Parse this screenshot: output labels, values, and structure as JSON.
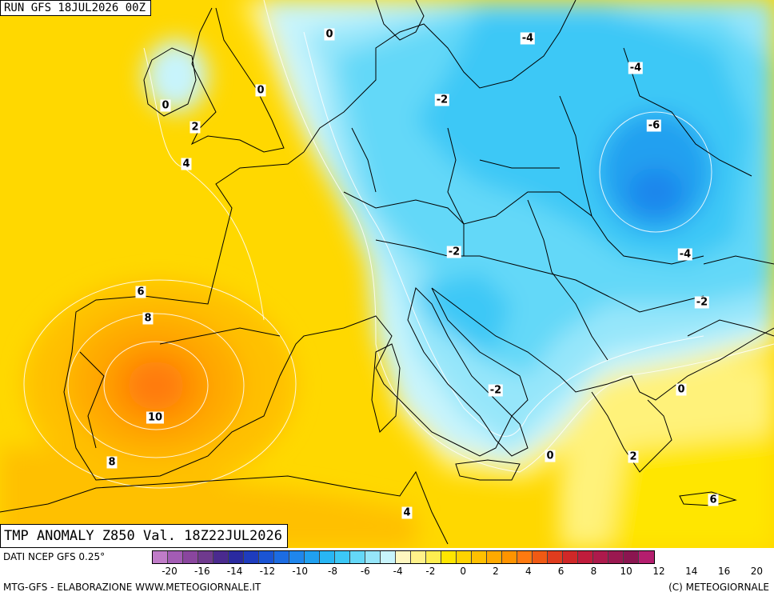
{
  "run_label": "RUN GFS 18JUL2026 00Z",
  "title": "TMP ANOMALY Z850 Val. 18Z22JUL2026",
  "source": "DATI NCEP GFS 0.25°",
  "footer_left": "MTG-GFS - ELABORAZIONE WWW.METEOGIORNALE.IT",
  "footer_right": "(C) METEOGIORNALE",
  "contour_labels": [
    {
      "text": "0"
    },
    {
      "text": "-4"
    },
    {
      "text": "-4"
    },
    {
      "text": "0"
    },
    {
      "text": "-2"
    },
    {
      "text": "0"
    },
    {
      "text": "-6"
    },
    {
      "text": "2"
    },
    {
      "text": "4"
    },
    {
      "text": "-2"
    },
    {
      "text": "-4"
    },
    {
      "text": "6"
    },
    {
      "text": "-2"
    },
    {
      "text": "8"
    },
    {
      "text": "-2"
    },
    {
      "text": "0"
    },
    {
      "text": "10"
    },
    {
      "text": "0"
    },
    {
      "text": "8"
    },
    {
      "text": "2"
    },
    {
      "text": "6"
    },
    {
      "text": "4"
    }
  ],
  "colorbar": [
    "#c07cc8",
    "#a35cb4",
    "#8a469e",
    "#6f3a8e",
    "#4a2a8e",
    "#2a2aa0",
    "#1e3cbe",
    "#1a54d4",
    "#1c6ce2",
    "#1f86ec",
    "#20a0f0",
    "#28b6f4",
    "#3cc8f6",
    "#64d8f8",
    "#96e6fa",
    "#c8f4fc",
    "#fff7c0",
    "#fff28a",
    "#ffee50",
    "#ffe600",
    "#ffd400",
    "#ffc000",
    "#ffaa00",
    "#ff9400",
    "#ff7a10",
    "#f05a14",
    "#e03c1e",
    "#d02828",
    "#c01c3c",
    "#ad1a4c",
    "#9a1850",
    "#8a1650",
    "#b41e6e"
  ],
  "tick_labels": [
    "-20",
    "-16",
    "-14",
    "-12",
    "-10",
    "-8",
    "-6",
    "-4",
    "-2",
    "0",
    "2",
    "4",
    "6",
    "8",
    "10",
    "12",
    "14",
    "16",
    "20"
  ]
}
